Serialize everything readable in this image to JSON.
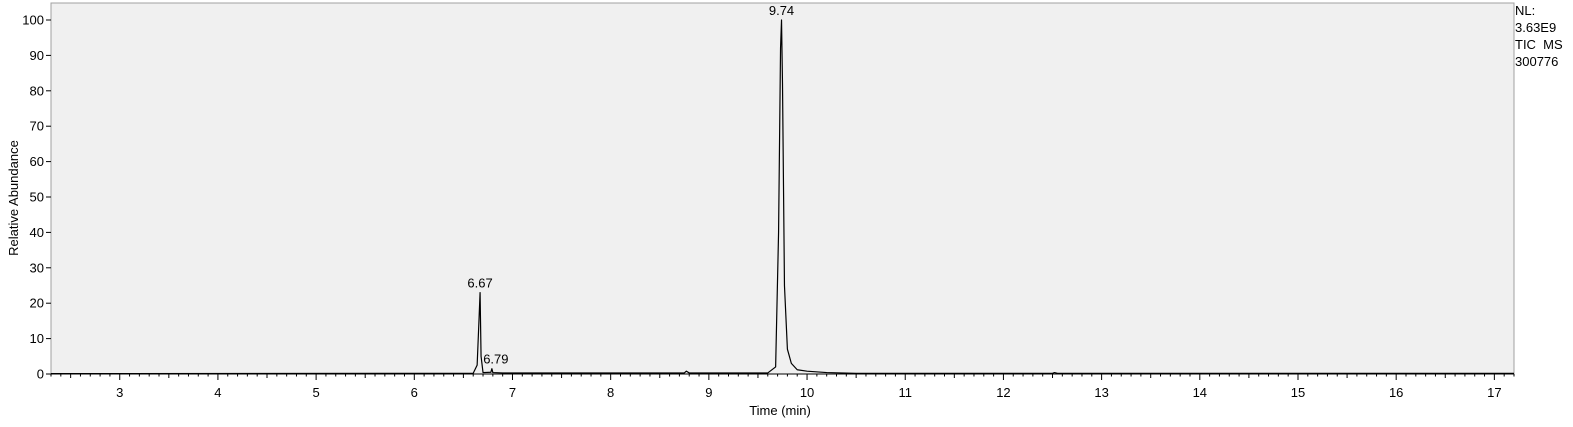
{
  "chart_data": {
    "type": "line",
    "xlabel": "Time (min)",
    "ylabel": "Relative Abundance",
    "xlim": [
      2.3,
      17.2
    ],
    "ylim": [
      0,
      100
    ],
    "x_ticks": [
      "3",
      "4",
      "5",
      "6",
      "7",
      "8",
      "9",
      "10",
      "11",
      "12",
      "13",
      "14",
      "15",
      "16",
      "17"
    ],
    "y_ticks": [
      "0",
      "10",
      "20",
      "30",
      "40",
      "50",
      "60",
      "70",
      "80",
      "90",
      "100"
    ],
    "grid": false,
    "peak_labels": [
      "6.67",
      "6.79",
      "9.74"
    ],
    "series": [
      {
        "x": [
          2.3,
          6.6,
          6.64,
          6.66,
          6.67,
          6.68,
          6.7,
          6.78,
          6.79,
          6.8,
          6.9,
          8.75,
          8.77,
          8.8,
          9.6,
          9.68,
          9.71,
          9.73,
          9.74,
          9.75,
          9.77,
          9.8,
          9.84,
          9.9,
          10.0,
          10.2,
          10.5,
          12.5,
          12.52,
          12.55,
          17.2
        ],
        "y": [
          0.1,
          0.2,
          2.5,
          16,
          23,
          5,
          0.4,
          0.5,
          1.5,
          0.4,
          0.3,
          0.3,
          0.8,
          0.3,
          0.3,
          2,
          40,
          92,
          100,
          82,
          25,
          7,
          3,
          1.2,
          0.8,
          0.4,
          0.2,
          0.2,
          0.4,
          0.2,
          0.2
        ]
      }
    ]
  },
  "info": {
    "nl_label": "NL:",
    "nl_value": "3.63E9",
    "scan_type": "TIC  MS",
    "file_id": "300776"
  },
  "colors": {
    "plot_background": "#f0f0f0",
    "trace": "#000000",
    "frame": "#a0a0a0"
  }
}
